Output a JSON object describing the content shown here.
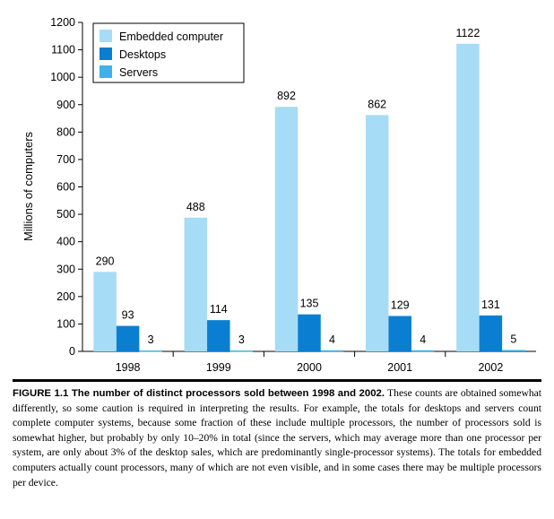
{
  "chart_data": {
    "type": "bar",
    "title": "",
    "xlabel": "",
    "ylabel": "Millions of computers",
    "ylim": [
      0,
      1200
    ],
    "yticks": [
      0,
      100,
      200,
      300,
      400,
      500,
      600,
      700,
      800,
      900,
      1000,
      1100,
      1200
    ],
    "categories": [
      "1998",
      "1999",
      "2000",
      "2001",
      "2002"
    ],
    "series": [
      {
        "name": "Embedded computer",
        "color": "#a6dcf5",
        "values": [
          290,
          488,
          892,
          862,
          1122
        ]
      },
      {
        "name": "Desktops",
        "color": "#0a7fd2",
        "values": [
          93,
          114,
          135,
          129,
          131
        ]
      },
      {
        "name": "Servers",
        "color": "#3fb1e6",
        "values": [
          3,
          3,
          4,
          4,
          5
        ]
      }
    ],
    "grid": false,
    "legend": "top-left"
  },
  "caption": {
    "lead": "FIGURE 1.1   The number of distinct processors sold between 1998 and 2002.",
    "text": " These counts are obtained somewhat differently, so some caution is required in interpreting the results. For example, the totals for desktops and servers count complete computer systems, because some fraction of these include multiple processors, the number of processors sold is somewhat higher, but probably by only 10–20% in total (since the servers, which may average more than one processor per system, are only about 3% of the desktop sales, which are predominantly single-processor systems). The totals for embedded computers actually count processors, many of which are not even visible, and in some cases there may be multiple processors per device."
  }
}
